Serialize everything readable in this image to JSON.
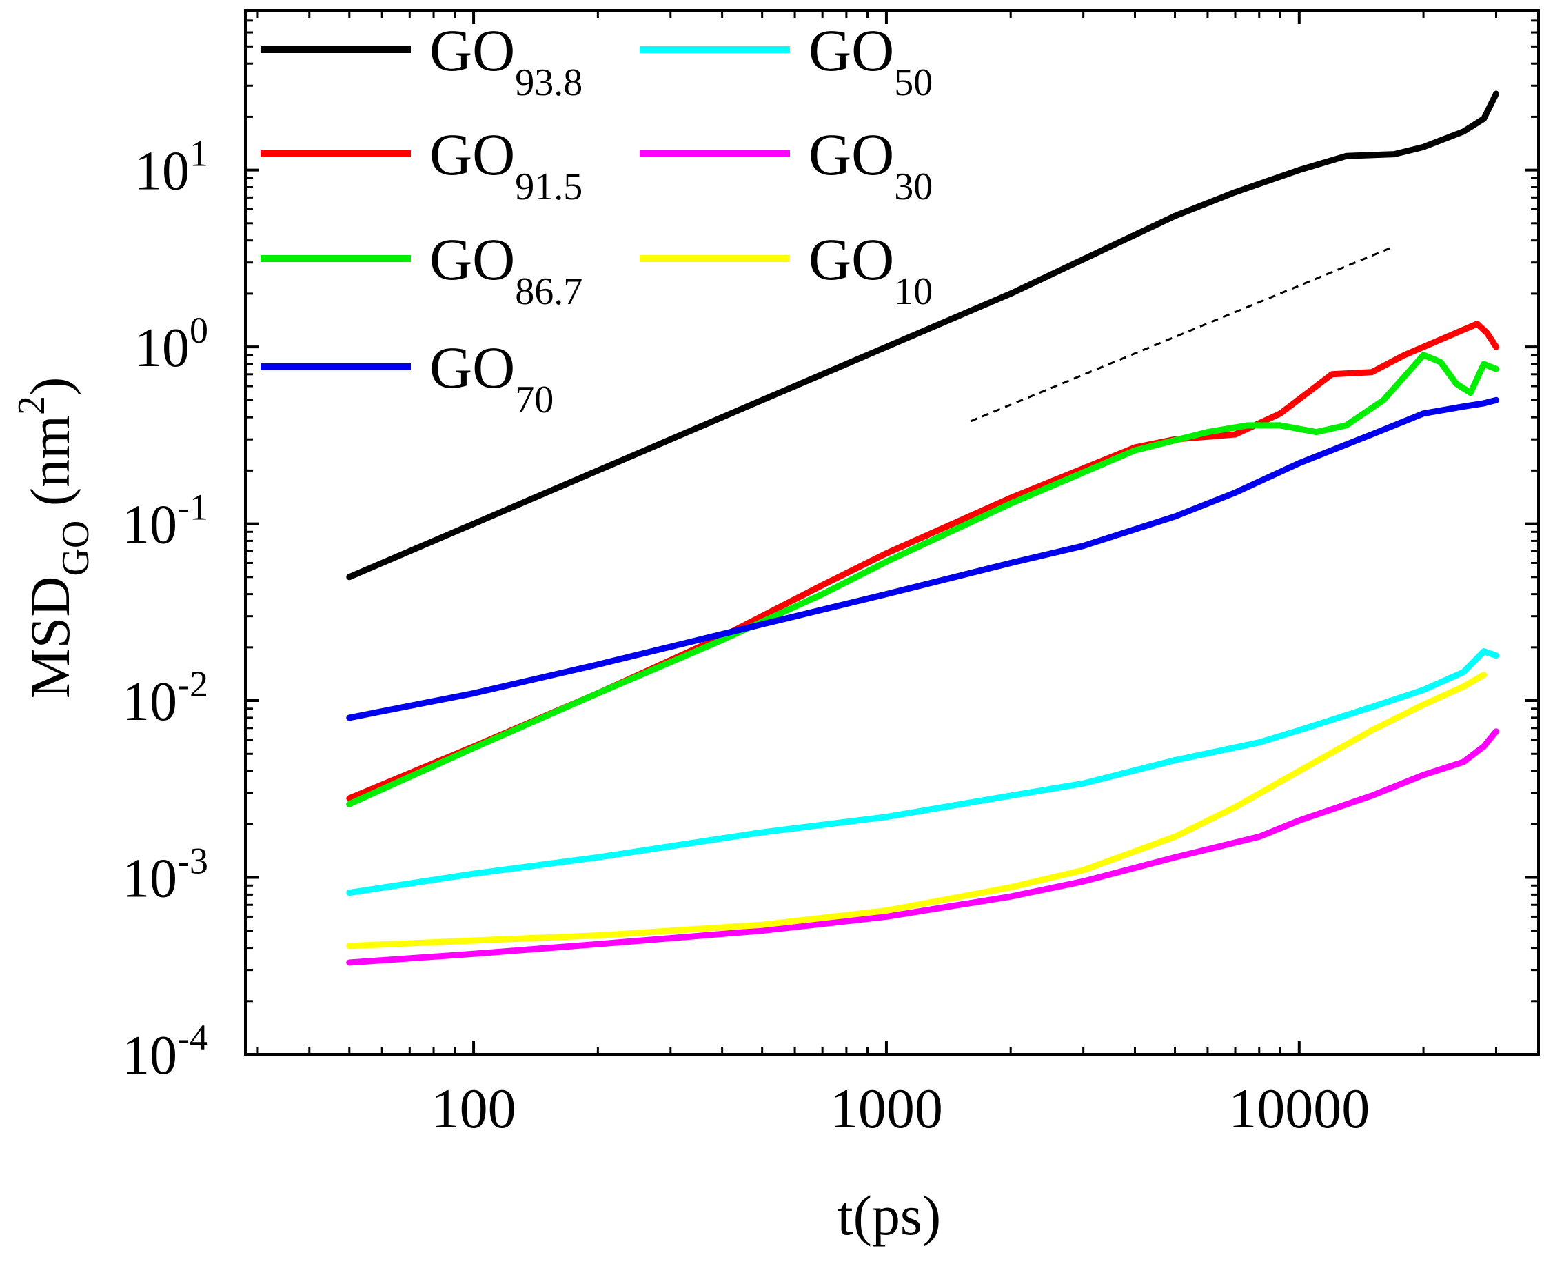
{
  "chart_data": {
    "type": "line",
    "xscale": "log",
    "yscale": "log",
    "xlim": [
      28,
      38000
    ],
    "ylim": [
      0.0001,
      80
    ],
    "xticks": [
      {
        "value": 100,
        "label": "100"
      },
      {
        "value": 1000,
        "label": "1000"
      },
      {
        "value": 10000,
        "label": "10000"
      }
    ],
    "yticks": [
      {
        "value": 0.0001,
        "base": "10",
        "exp": "-4"
      },
      {
        "value": 0.001,
        "base": "10",
        "exp": "-3"
      },
      {
        "value": 0.01,
        "base": "10",
        "exp": "-2"
      },
      {
        "value": 0.1,
        "base": "10",
        "exp": "-1"
      },
      {
        "value": 1,
        "base": "10",
        "exp": "0"
      },
      {
        "value": 10,
        "base": "10",
        "exp": "1"
      }
    ],
    "xlabel": "t(ps)",
    "ylabel": {
      "main": "MSD",
      "sub": "GO",
      "unit_open": " (nm",
      "unit_sup": "2",
      "unit_close": ")"
    },
    "legend_position": "top-left",
    "series": [
      {
        "name": "GO",
        "sub": "93.8",
        "color": "#000000",
        "x": [
          50,
          100,
          200,
          500,
          1000,
          2000,
          5000,
          7000,
          10000,
          13000,
          17000,
          20000,
          25000,
          28000,
          30000
        ],
        "y": [
          0.05,
          0.1,
          0.2,
          0.5,
          1.0,
          2.0,
          5.5,
          7.5,
          10,
          12,
          12.3,
          13.5,
          16.5,
          19.5,
          27
        ]
      },
      {
        "name": "GO",
        "sub": "91.5",
        "color": "#ff0000",
        "x": [
          50,
          100,
          200,
          400,
          700,
          1000,
          2000,
          4000,
          5000,
          7000,
          9000,
          12000,
          15000,
          18000,
          22000,
          25000,
          27000,
          28500,
          30000
        ],
        "y": [
          0.0028,
          0.0055,
          0.011,
          0.023,
          0.045,
          0.068,
          0.14,
          0.27,
          0.3,
          0.32,
          0.42,
          0.7,
          0.72,
          0.9,
          1.1,
          1.25,
          1.35,
          1.2,
          1.0
        ]
      },
      {
        "name": "GO",
        "sub": "86.7",
        "color": "#00ee00",
        "x": [
          50,
          100,
          200,
          400,
          700,
          1000,
          2000,
          4000,
          6000,
          7500,
          9000,
          11000,
          13000,
          16000,
          20000,
          22000,
          24000,
          26000,
          28000,
          30000
        ],
        "y": [
          0.0026,
          0.0054,
          0.011,
          0.022,
          0.04,
          0.061,
          0.13,
          0.26,
          0.33,
          0.36,
          0.36,
          0.33,
          0.36,
          0.5,
          0.9,
          0.82,
          0.62,
          0.55,
          0.8,
          0.75
        ]
      },
      {
        "name": "GO",
        "sub": "70",
        "color": "#0000ee",
        "x": [
          50,
          100,
          200,
          500,
          1000,
          2000,
          3000,
          5000,
          7000,
          10000,
          15000,
          20000,
          25000,
          28000,
          30000
        ],
        "y": [
          0.008,
          0.011,
          0.016,
          0.027,
          0.04,
          0.06,
          0.075,
          0.11,
          0.15,
          0.22,
          0.32,
          0.42,
          0.46,
          0.48,
          0.5
        ]
      },
      {
        "name": "GO",
        "sub": "50",
        "color": "#00ffff",
        "x": [
          50,
          100,
          200,
          500,
          1000,
          2000,
          3000,
          5000,
          8000,
          10000,
          15000,
          20000,
          25000,
          28000,
          30000
        ],
        "y": [
          0.00082,
          0.00105,
          0.0013,
          0.0018,
          0.0022,
          0.0029,
          0.0034,
          0.0046,
          0.0058,
          0.0068,
          0.0092,
          0.0115,
          0.0145,
          0.019,
          0.018
        ]
      },
      {
        "name": "GO",
        "sub": "30",
        "color": "#ff00ff",
        "x": [
          50,
          100,
          200,
          500,
          1000,
          2000,
          3000,
          5000,
          8000,
          10000,
          15000,
          20000,
          25000,
          28000,
          30000
        ],
        "y": [
          0.00033,
          0.00037,
          0.00042,
          0.0005,
          0.0006,
          0.00078,
          0.00095,
          0.0013,
          0.0017,
          0.0021,
          0.0029,
          0.0038,
          0.0045,
          0.0055,
          0.0067
        ]
      },
      {
        "name": "GO",
        "sub": "10",
        "color": "#ffff00",
        "x": [
          50,
          100,
          200,
          500,
          1000,
          2000,
          3000,
          5000,
          7000,
          10000,
          15000,
          20000,
          25000,
          28000
        ],
        "y": [
          0.00041,
          0.00044,
          0.00047,
          0.00054,
          0.00065,
          0.00088,
          0.0011,
          0.0017,
          0.0025,
          0.004,
          0.0068,
          0.0095,
          0.012,
          0.014
        ]
      }
    ],
    "reference_line": {
      "style": "dashed",
      "color": "#000000",
      "x": [
        1600,
        17000
      ],
      "y": [
        0.38,
        3.7
      ]
    }
  }
}
